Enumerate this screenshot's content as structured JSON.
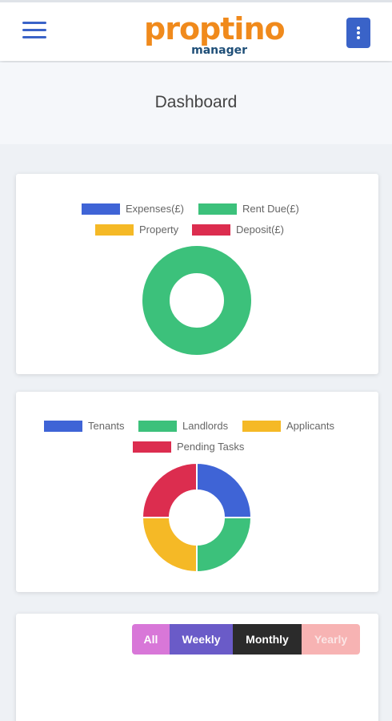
{
  "header": {
    "logo_main": "proptino",
    "logo_sub": "manager",
    "menu_icon": "hamburger-menu-icon",
    "more_icon": "vertical-dots-icon"
  },
  "page": {
    "title": "Dashboard"
  },
  "finance_chart": {
    "legend": [
      {
        "label": "Expenses(£)",
        "color": "#3f64d6"
      },
      {
        "label": "Rent Due(£)",
        "color": "#3cc17b"
      },
      {
        "label": "Property",
        "color": "#f5b926"
      },
      {
        "label": "Deposit(£)",
        "color": "#dc2d4f"
      }
    ]
  },
  "people_chart": {
    "legend": [
      {
        "label": "Tenants",
        "color": "#3f64d6"
      },
      {
        "label": "Landlords",
        "color": "#3cc17b"
      },
      {
        "label": "Applicants",
        "color": "#f5b926"
      },
      {
        "label": "Pending Tasks",
        "color": "#dc2d4f"
      }
    ]
  },
  "period_tabs": {
    "all": "All",
    "weekly": "Weekly",
    "monthly": "Monthly",
    "yearly": "Yearly",
    "selected": "Monthly"
  },
  "chart_data": [
    {
      "type": "pie",
      "categories": [
        "Expenses(£)",
        "Rent Due(£)",
        "Property",
        "Deposit(£)"
      ],
      "values": [
        0,
        1,
        0,
        0
      ],
      "colors": [
        "#3f64d6",
        "#3cc17b",
        "#f5b926",
        "#dc2d4f"
      ]
    },
    {
      "type": "pie",
      "categories": [
        "Tenants",
        "Landlords",
        "Applicants",
        "Pending Tasks"
      ],
      "values": [
        1,
        1,
        1,
        1
      ],
      "colors": [
        "#3f64d6",
        "#3cc17b",
        "#f5b926",
        "#dc2d4f"
      ]
    }
  ]
}
